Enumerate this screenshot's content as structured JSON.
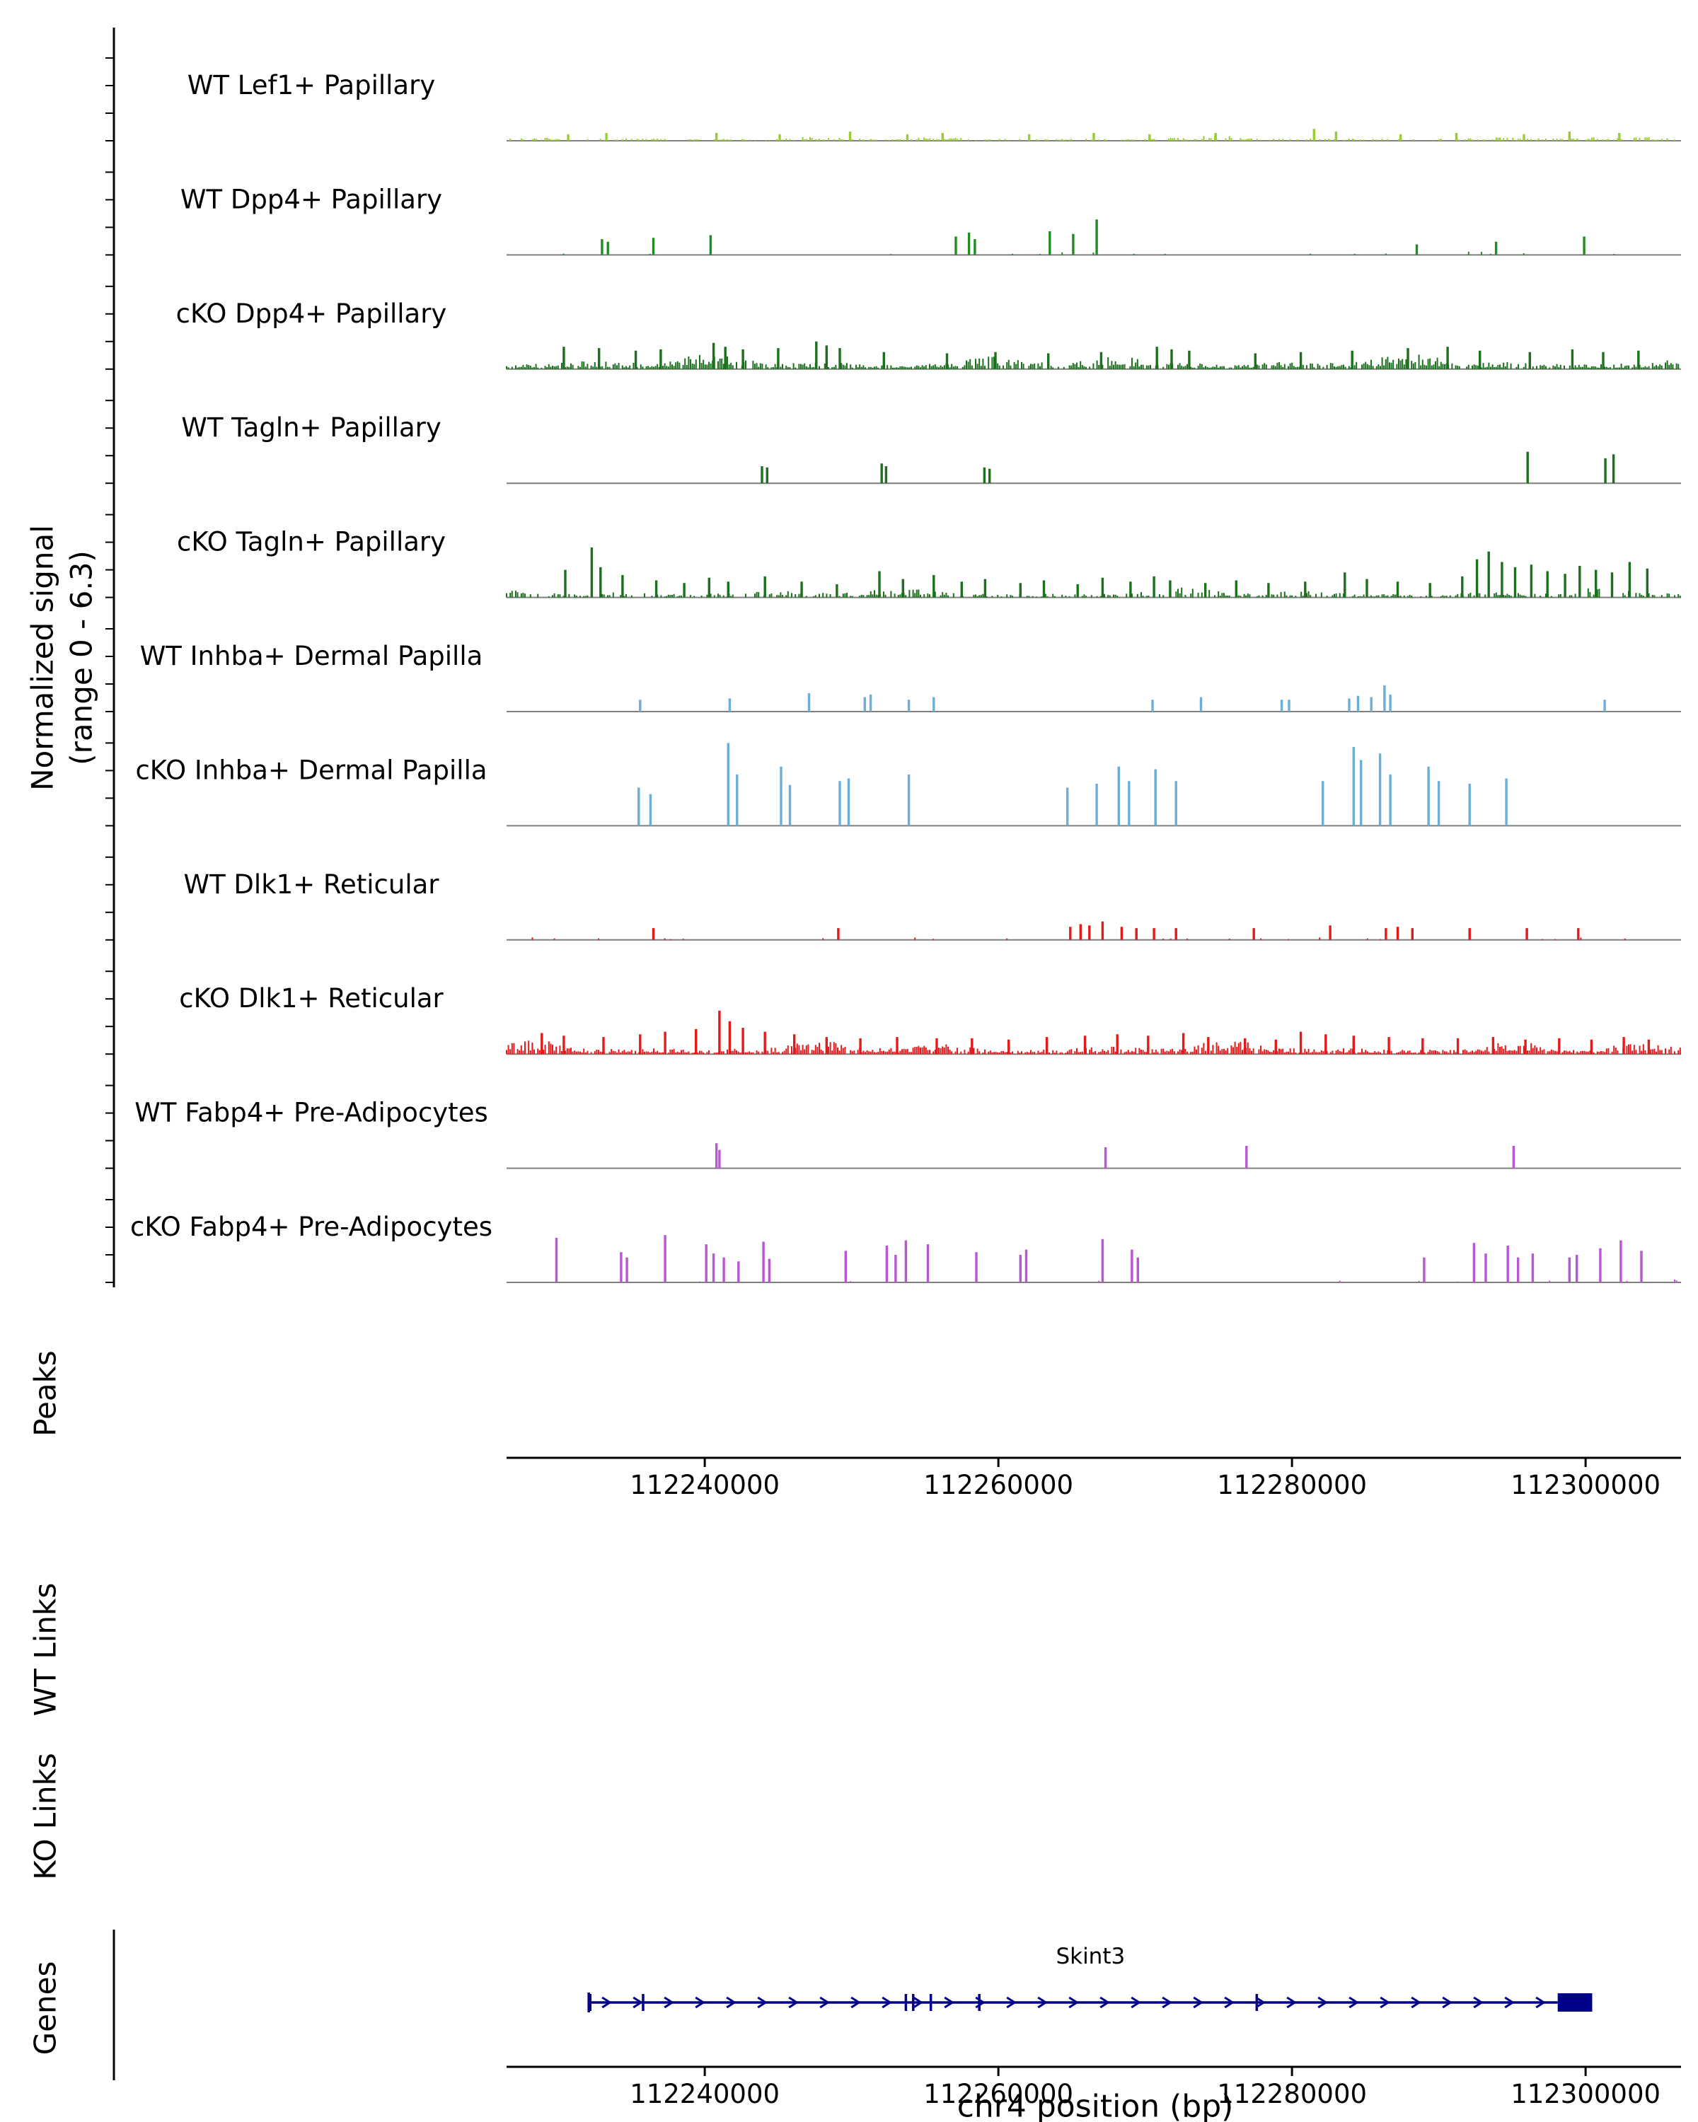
{
  "figure": {
    "ylabel_line1": "Normalized signal",
    "ylabel_line2": "(range 0 - 6.3)",
    "xlabel": "chr4 position (bp)",
    "sections": {
      "peaks": "Peaks",
      "wt_links": "WT Links",
      "ko_links": "KO Links",
      "genes": "Genes"
    }
  },
  "chart_data": {
    "type": "area",
    "subtype": "genome-signal-tracks",
    "chrom": "chr4",
    "xlabel": "chr4 position (bp)",
    "ylabel": "Normalized signal (range 0 - 6.3)",
    "y_range": [
      0,
      6.3
    ],
    "xlim": [
      112226500,
      112306500
    ],
    "x_ticks": [
      112240000,
      112260000,
      112280000,
      112300000
    ],
    "annotation_rows": [
      {
        "label": "Peaks",
        "items": []
      },
      {
        "label": "WT Links",
        "links": []
      },
      {
        "label": "KO Links",
        "links": []
      }
    ],
    "tracks": [
      {
        "label": "WT Lef1+ Papillary",
        "color": "#9ACD32",
        "noise": {
          "density": 0.5,
          "max": 0.4
        },
        "peaks": [
          [
            112230700,
            0.5
          ],
          [
            112233300,
            0.6
          ],
          [
            112240800,
            0.6
          ],
          [
            112245100,
            0.5
          ],
          [
            112249900,
            0.7
          ],
          [
            112253800,
            0.5
          ],
          [
            112256200,
            0.6
          ],
          [
            112262100,
            0.5
          ],
          [
            112266500,
            0.6
          ],
          [
            112270300,
            0.5
          ],
          [
            112274800,
            0.6
          ],
          [
            112281500,
            0.9
          ],
          [
            112283000,
            0.7
          ],
          [
            112287400,
            0.5
          ],
          [
            112291200,
            0.6
          ],
          [
            112295800,
            0.5
          ],
          [
            112298900,
            0.7
          ],
          [
            112302300,
            0.6
          ]
        ]
      },
      {
        "label": "WT Dpp4+ Papillary",
        "color": "#228B22",
        "noise": {
          "density": 0.04,
          "max": 0.3
        },
        "peaks": [
          [
            112233000,
            1.2
          ],
          [
            112233400,
            1.0
          ],
          [
            112236500,
            1.3
          ],
          [
            112240400,
            1.5
          ],
          [
            112257100,
            1.4
          ],
          [
            112258000,
            1.7
          ],
          [
            112258400,
            1.2
          ],
          [
            112263500,
            1.8
          ],
          [
            112265100,
            1.6
          ],
          [
            112266700,
            2.7
          ],
          [
            112288500,
            0.8
          ],
          [
            112293900,
            1.0
          ],
          [
            112299900,
            1.4
          ]
        ]
      },
      {
        "label": "cKO Dpp4+ Papillary",
        "color": "#1C6F1C",
        "noise": {
          "density": 0.8,
          "max": 1.2
        },
        "peaks": [
          [
            112230400,
            1.7
          ],
          [
            112232800,
            1.6
          ],
          [
            112235300,
            1.4
          ],
          [
            112237000,
            1.5
          ],
          [
            112240600,
            2.0
          ],
          [
            112241400,
            1.7
          ],
          [
            112242600,
            1.5
          ],
          [
            112245000,
            1.6
          ],
          [
            112247600,
            2.1
          ],
          [
            112248300,
            1.8
          ],
          [
            112249200,
            1.6
          ],
          [
            112252200,
            1.3
          ],
          [
            112256500,
            1.2
          ],
          [
            112259800,
            1.3
          ],
          [
            112263400,
            1.2
          ],
          [
            112267000,
            1.3
          ],
          [
            112270800,
            1.7
          ],
          [
            112271800,
            1.5
          ],
          [
            112273000,
            1.4
          ],
          [
            112277500,
            1.2
          ],
          [
            112280600,
            1.3
          ],
          [
            112284100,
            1.4
          ],
          [
            112287900,
            1.6
          ],
          [
            112290600,
            1.7
          ],
          [
            112292800,
            1.4
          ],
          [
            112296200,
            1.3
          ],
          [
            112299100,
            1.5
          ],
          [
            112301200,
            1.3
          ],
          [
            112303600,
            1.4
          ]
        ]
      },
      {
        "label": "WT Tagln+ Papillary",
        "color": "#1C6F1C",
        "noise": null,
        "peaks": [
          [
            112243900,
            1.3
          ],
          [
            112244250,
            1.2
          ],
          [
            112252050,
            1.5
          ],
          [
            112252350,
            1.3
          ],
          [
            112259050,
            1.2
          ],
          [
            112259400,
            1.1
          ],
          [
            112296050,
            2.4
          ],
          [
            112301350,
            1.9
          ],
          [
            112301900,
            2.2
          ]
        ]
      },
      {
        "label": "cKO Tagln+ Papillary",
        "color": "#1C6F1C",
        "noise": {
          "density": 0.5,
          "max": 0.8
        },
        "peaks": [
          [
            112230500,
            2.1
          ],
          [
            112232300,
            3.8
          ],
          [
            112232900,
            2.3
          ],
          [
            112234400,
            1.7
          ],
          [
            112236700,
            1.3
          ],
          [
            112238600,
            1.1
          ],
          [
            112240300,
            1.5
          ],
          [
            112241600,
            1.2
          ],
          [
            112244100,
            1.6
          ],
          [
            112246600,
            1.2
          ],
          [
            112249000,
            1.0
          ],
          [
            112251900,
            2.0
          ],
          [
            112253500,
            1.4
          ],
          [
            112255600,
            1.7
          ],
          [
            112257500,
            1.2
          ],
          [
            112259100,
            1.4
          ],
          [
            112261500,
            1.1
          ],
          [
            112263100,
            1.3
          ],
          [
            112265400,
            1.0
          ],
          [
            112267100,
            1.5
          ],
          [
            112269000,
            1.2
          ],
          [
            112270600,
            1.6
          ],
          [
            112271700,
            1.3
          ],
          [
            112274100,
            1.1
          ],
          [
            112276200,
            1.3
          ],
          [
            112278400,
            1.1
          ],
          [
            112280900,
            1.2
          ],
          [
            112283600,
            1.9
          ],
          [
            112285100,
            1.4
          ],
          [
            112287200,
            1.2
          ],
          [
            112289400,
            1.1
          ],
          [
            112291600,
            1.6
          ],
          [
            112292600,
            2.9
          ],
          [
            112293400,
            3.5
          ],
          [
            112294300,
            2.7
          ],
          [
            112295200,
            2.3
          ],
          [
            112296300,
            2.5
          ],
          [
            112297400,
            2.0
          ],
          [
            112298600,
            1.8
          ],
          [
            112299600,
            2.4
          ],
          [
            112300700,
            2.1
          ],
          [
            112301800,
            1.9
          ],
          [
            112303000,
            2.7
          ],
          [
            112304200,
            2.2
          ]
        ]
      },
      {
        "label": "WT Inhba+ Dermal Papilla",
        "color": "#6BAED6",
        "noise": null,
        "peaks": [
          [
            112235600,
            0.9
          ],
          [
            112241700,
            1.0
          ],
          [
            112247100,
            1.4
          ],
          [
            112250900,
            1.1
          ],
          [
            112251300,
            1.3
          ],
          [
            112253900,
            0.9
          ],
          [
            112255600,
            1.1
          ],
          [
            112270500,
            0.9
          ],
          [
            112273800,
            1.1
          ],
          [
            112279300,
            0.9
          ],
          [
            112279800,
            0.9
          ],
          [
            112283900,
            1.0
          ],
          [
            112284500,
            1.2
          ],
          [
            112285400,
            1.1
          ],
          [
            112286300,
            2.0
          ],
          [
            112286700,
            1.3
          ],
          [
            112301300,
            0.9
          ]
        ]
      },
      {
        "label": "cKO Inhba+ Dermal Papilla",
        "color": "#6BAED6",
        "noise": null,
        "peaks": [
          [
            112235500,
            2.9
          ],
          [
            112236300,
            2.4
          ],
          [
            112241600,
            6.3
          ],
          [
            112242200,
            3.9
          ],
          [
            112245200,
            4.5
          ],
          [
            112245800,
            3.1
          ],
          [
            112249200,
            3.4
          ],
          [
            112249800,
            3.6
          ],
          [
            112253900,
            3.9
          ],
          [
            112264700,
            2.9
          ],
          [
            112266700,
            3.2
          ],
          [
            112268200,
            4.5
          ],
          [
            112268900,
            3.4
          ],
          [
            112270700,
            4.3
          ],
          [
            112272100,
            3.4
          ],
          [
            112282100,
            3.4
          ],
          [
            112284200,
            6.0
          ],
          [
            112284700,
            5.0
          ],
          [
            112286000,
            5.5
          ],
          [
            112286700,
            3.9
          ],
          [
            112289300,
            4.5
          ],
          [
            112290000,
            3.4
          ],
          [
            112292100,
            3.2
          ],
          [
            112294600,
            3.6
          ]
        ]
      },
      {
        "label": "WT Dlk1+ Reticular",
        "color": "#E31A1C",
        "noise": {
          "density": 0.08,
          "max": 0.3
        },
        "peaks": [
          [
            112236500,
            0.9
          ],
          [
            112249100,
            0.9
          ],
          [
            112264900,
            1.0
          ],
          [
            112265600,
            1.2
          ],
          [
            112266200,
            1.1
          ],
          [
            112267100,
            1.4
          ],
          [
            112268400,
            1.0
          ],
          [
            112269400,
            0.9
          ],
          [
            112270600,
            0.9
          ],
          [
            112272100,
            0.9
          ],
          [
            112277400,
            0.9
          ],
          [
            112282600,
            1.1
          ],
          [
            112286400,
            0.9
          ],
          [
            112287200,
            1.0
          ],
          [
            112288200,
            0.9
          ],
          [
            112292100,
            0.9
          ],
          [
            112296000,
            0.9
          ],
          [
            112299500,
            0.9
          ]
        ]
      },
      {
        "label": "cKO Dlk1+ Reticular",
        "color": "#E31A1C",
        "noise": {
          "density": 0.85,
          "max": 1.1
        },
        "peaks": [
          [
            112228900,
            1.6
          ],
          [
            112230400,
            1.4
          ],
          [
            112233100,
            1.3
          ],
          [
            112235600,
            1.5
          ],
          [
            112237300,
            1.7
          ],
          [
            112239400,
            1.9
          ],
          [
            112241000,
            3.3
          ],
          [
            112241700,
            2.5
          ],
          [
            112242600,
            2.0
          ],
          [
            112244100,
            1.7
          ],
          [
            112246100,
            1.5
          ],
          [
            112248300,
            1.3
          ],
          [
            112250600,
            1.2
          ],
          [
            112253100,
            1.3
          ],
          [
            112255800,
            1.2
          ],
          [
            112258200,
            1.2
          ],
          [
            112260700,
            1.1
          ],
          [
            112263300,
            1.3
          ],
          [
            112265900,
            1.4
          ],
          [
            112268100,
            1.5
          ],
          [
            112270200,
            1.4
          ],
          [
            112272600,
            1.6
          ],
          [
            112274300,
            1.3
          ],
          [
            112276800,
            1.2
          ],
          [
            112278900,
            1.1
          ],
          [
            112280600,
            1.7
          ],
          [
            112282300,
            1.5
          ],
          [
            112284200,
            1.4
          ],
          [
            112286600,
            1.3
          ],
          [
            112288900,
            1.2
          ],
          [
            112291300,
            1.2
          ],
          [
            112293700,
            1.3
          ],
          [
            112295900,
            1.1
          ],
          [
            112298200,
            1.2
          ],
          [
            112300400,
            1.1
          ],
          [
            112302600,
            1.3
          ],
          [
            112304300,
            1.1
          ]
        ]
      },
      {
        "label": "WT Fabp4+ Pre-Adipocytes",
        "color": "#BA55D3",
        "noise": null,
        "peaks": [
          [
            112240800,
            1.9
          ],
          [
            112241000,
            1.4
          ],
          [
            112267300,
            1.6
          ],
          [
            112276900,
            1.7
          ],
          [
            112295100,
            1.7
          ]
        ]
      },
      {
        "label": "cKO Fabp4+ Pre-Adipocytes",
        "color": "#BA55D3",
        "noise": {
          "density": 0.03,
          "max": 0.3
        },
        "peaks": [
          [
            112229900,
            3.4
          ],
          [
            112234300,
            2.3
          ],
          [
            112234700,
            1.9
          ],
          [
            112237300,
            3.6
          ],
          [
            112240100,
            2.9
          ],
          [
            112240600,
            2.2
          ],
          [
            112241300,
            1.9
          ],
          [
            112242300,
            1.6
          ],
          [
            112244000,
            3.1
          ],
          [
            112244400,
            1.8
          ],
          [
            112249600,
            2.4
          ],
          [
            112252400,
            2.8
          ],
          [
            112253000,
            2.1
          ],
          [
            112253700,
            3.2
          ],
          [
            112255200,
            2.9
          ],
          [
            112258500,
            2.3
          ],
          [
            112261500,
            2.1
          ],
          [
            112261900,
            2.5
          ],
          [
            112267100,
            3.3
          ],
          [
            112269100,
            2.5
          ],
          [
            112269500,
            1.9
          ],
          [
            112289000,
            1.9
          ],
          [
            112292400,
            3.0
          ],
          [
            112293200,
            2.2
          ],
          [
            112294700,
            2.8
          ],
          [
            112295400,
            1.9
          ],
          [
            112296400,
            2.2
          ],
          [
            112298900,
            1.9
          ],
          [
            112299400,
            2.1
          ],
          [
            112301000,
            2.6
          ],
          [
            112302400,
            3.2
          ],
          [
            112303800,
            2.4
          ]
        ]
      }
    ],
    "genes": [
      {
        "name": "Skint3",
        "start": 112232100,
        "end": 112300450,
        "strand": "+",
        "color": "#00008B",
        "exon_ticks": [
          112232200,
          112235800,
          112253700,
          112254200,
          112255400,
          112258700,
          112277600
        ],
        "thick_block": [
          112298100,
          112300450
        ]
      }
    ]
  }
}
